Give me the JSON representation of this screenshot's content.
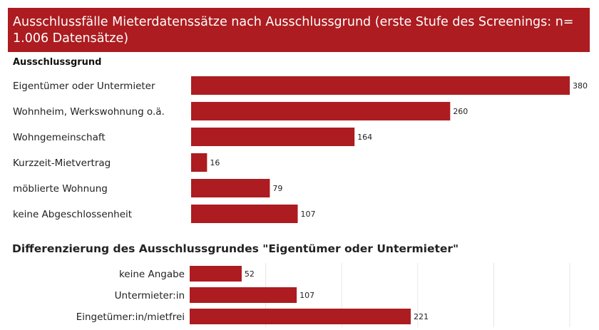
{
  "colors": {
    "accent": "#ac1c20",
    "grid": "#e6e6e6"
  },
  "chart_data": [
    {
      "type": "bar",
      "orientation": "horizontal",
      "title": "Ausschlussfälle Mieterdatenssätze nach Ausschlussgrund (erste Stufe des Screenings: n= 1.006 Datensätze)",
      "category_header": "Ausschlussgrund",
      "categories": [
        "Eigentümer oder Untermieter",
        "Wohnheim, Werkswohnung o.ä.",
        "Wohngemeinschaft",
        "Kurzzeit-Mietvertrag",
        "möblierte Wohnung",
        "keine Abgeschlossenheit"
      ],
      "values": [
        380,
        260,
        164,
        16,
        79,
        107
      ],
      "xlim": [
        0,
        380
      ]
    },
    {
      "type": "bar",
      "orientation": "horizontal",
      "title": "Differenzierung des Ausschlussgrundes \"Eigentümer oder Untermieter\"",
      "categories": [
        "keine Angabe",
        "Untermieter:in",
        "Eingetümer:in/mietfrei"
      ],
      "values": [
        52,
        107,
        221
      ],
      "xlim": [
        0,
        380
      ]
    }
  ]
}
